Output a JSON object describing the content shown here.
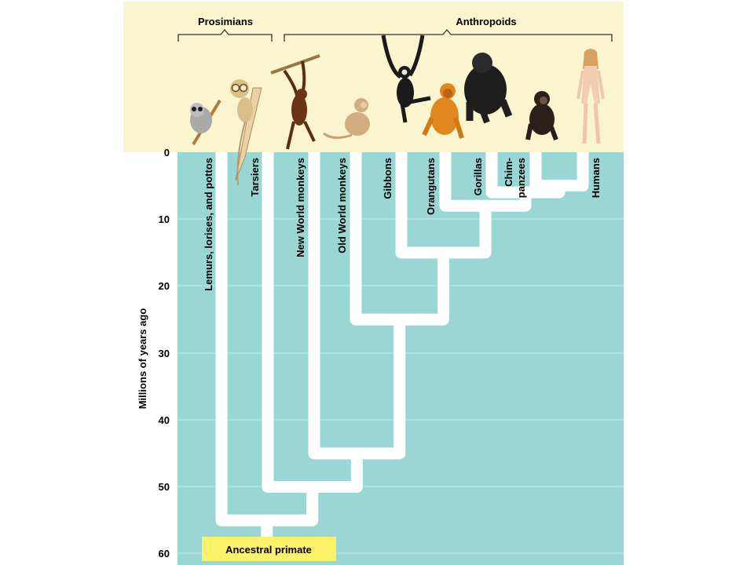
{
  "groups": {
    "prosimians": "Prosimians",
    "anthropoids": "Anthropoids"
  },
  "axis": {
    "label": "Millions of years ago",
    "ticks": [
      0,
      10,
      20,
      30,
      40,
      50,
      60
    ]
  },
  "taxa": [
    {
      "label": "Lemurs, lorises, and pottos",
      "icon": "loris-icon"
    },
    {
      "label": "Tarsiers",
      "icon": "tarsier-icon"
    },
    {
      "label": "New World monkeys",
      "icon": "spider-monkey-icon"
    },
    {
      "label": "Old World monkeys",
      "icon": "macaque-icon"
    },
    {
      "label": "Gibbons",
      "icon": "gibbon-icon"
    },
    {
      "label": "Orangutans",
      "icon": "orangutan-icon"
    },
    {
      "label": "Gorillas",
      "icon": "gorilla-icon"
    },
    {
      "label_lines": [
        "Chim-",
        "panzees"
      ],
      "icon": "chimpanzee-icon"
    },
    {
      "label": "Humans",
      "icon": "human-icon"
    }
  ],
  "divergences_mya": {
    "prosimians_vs_anthropoids": 55,
    "tarsiers_vs_anthropoids": 50,
    "new_world_vs_old_world": 45,
    "old_world_monkeys_vs_apes": 25,
    "gibbons_vs_great_apes": 15,
    "orangutans_vs_african_apes": 8,
    "gorillas_vs_chimps_humans": 6,
    "chimpanzees_vs_humans": 5
  },
  "root_label": "Ancestral primate",
  "colors": {
    "header_bg": "#fbf5cf",
    "plot_bg": "#9ad6d3",
    "branch": "#ffffff",
    "root_box": "#fbf26a"
  }
}
